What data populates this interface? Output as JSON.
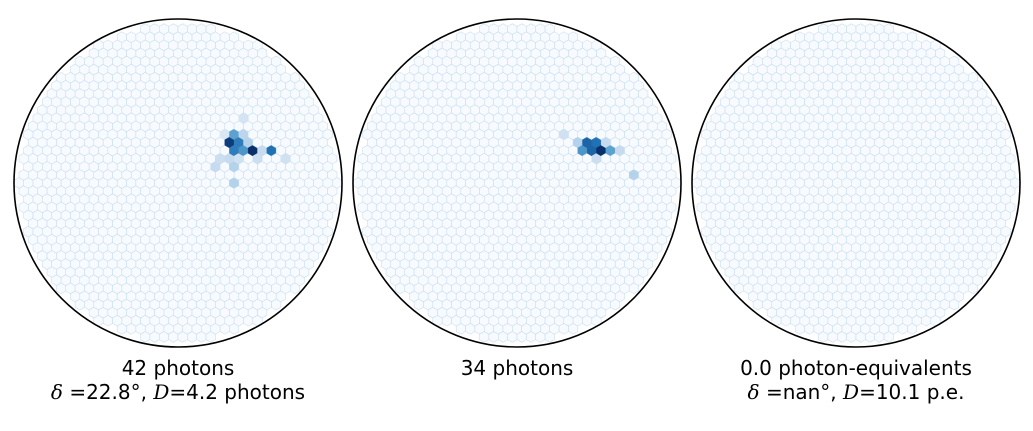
{
  "chart_data": [
    {
      "type": "heatmap",
      "caption_line1": "42 photons",
      "caption_line2": {
        "delta_symbol": "δ",
        "delta_value": "=22.8°,",
        "d_symbol": "D",
        "d_value": "=4.2 photons"
      },
      "hot_pixels": [
        {
          "q": 8,
          "r": -6,
          "value": 0.15
        },
        {
          "q": 11,
          "r": -8,
          "value": 0.18
        },
        {
          "q": 6,
          "r": -3,
          "value": 0.22
        },
        {
          "q": 10,
          "r": -6,
          "value": 0.28
        },
        {
          "q": 9,
          "r": -6,
          "value": 0.55
        },
        {
          "q": 8,
          "r": -5,
          "value": 0.95
        },
        {
          "q": 9,
          "r": -5,
          "value": 0.7
        },
        {
          "q": 10,
          "r": -5,
          "value": 0.3
        },
        {
          "q": 8,
          "r": -4,
          "value": 0.7
        },
        {
          "q": 9,
          "r": -4,
          "value": 0.6
        },
        {
          "q": 10,
          "r": -4,
          "value": 1.0
        },
        {
          "q": 11,
          "r": -4,
          "value": 0.25
        },
        {
          "q": 12,
          "r": -4,
          "value": 0.75
        },
        {
          "q": 7,
          "r": -3,
          "value": 0.25
        },
        {
          "q": 8,
          "r": -3,
          "value": 0.2
        },
        {
          "q": 10,
          "r": -3,
          "value": 0.22
        },
        {
          "q": 13,
          "r": -3,
          "value": 0.2
        },
        {
          "q": 5,
          "r": -2,
          "value": 0.25
        },
        {
          "q": 7,
          "r": -2,
          "value": 0.3
        },
        {
          "q": 6,
          "r": 0,
          "value": 0.3
        }
      ]
    },
    {
      "type": "heatmap",
      "caption_line1": "34 photons",
      "hot_pixels": [
        {
          "q": 8,
          "r": -6,
          "value": 0.2
        },
        {
          "q": 9,
          "r": -5,
          "value": 0.3
        },
        {
          "q": 10,
          "r": -5,
          "value": 0.8
        },
        {
          "q": 11,
          "r": -5,
          "value": 0.75
        },
        {
          "q": 12,
          "r": -5,
          "value": 0.25
        },
        {
          "q": 9,
          "r": -4,
          "value": 0.6
        },
        {
          "q": 10,
          "r": -4,
          "value": 0.8
        },
        {
          "q": 11,
          "r": -4,
          "value": 1.0
        },
        {
          "q": 12,
          "r": -4,
          "value": 0.55
        },
        {
          "q": 13,
          "r": -4,
          "value": 0.25
        },
        {
          "q": 10,
          "r": -3,
          "value": 0.22
        },
        {
          "q": 13,
          "r": -1,
          "value": 0.3
        }
      ]
    },
    {
      "type": "heatmap",
      "caption_line1": "0.0 photon-equivalents",
      "caption_line2": {
        "delta_symbol": "δ",
        "delta_value": "=nan°,",
        "d_symbol": "D",
        "d_value": "=10.1 p.e."
      },
      "hot_pixels": []
    }
  ],
  "colors": {
    "background_pixel_fill": "#f7fbff",
    "pixel_edge": "#c6dbef",
    "outline": "#000000",
    "colormap": [
      "#f7fbff",
      "#c6dbef",
      "#6baed6",
      "#2171b5",
      "#08306b"
    ]
  },
  "colormap_name": "Blues"
}
